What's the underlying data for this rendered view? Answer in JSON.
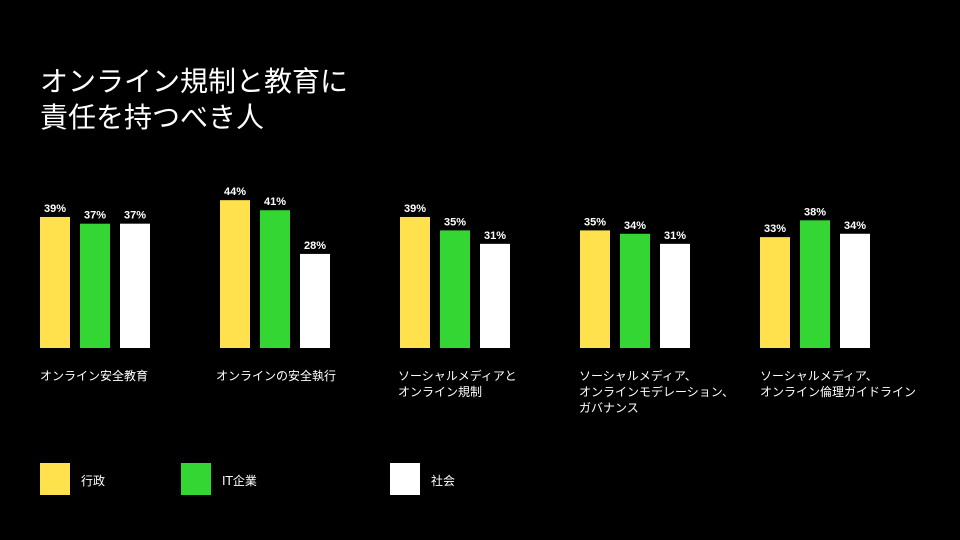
{
  "title": "オンライン規制と教育に\n責任を持つべき人",
  "colors": {
    "government": "#FFE14D",
    "it_companies": "#33D633",
    "society": "#FFFFFF"
  },
  "chart_data": {
    "type": "bar",
    "categories": [
      "オンライン安全教育",
      "オンラインの安全執行",
      "ソーシャルメディアと\nオンライン規制",
      "ソーシャルメディア、\nオンラインモデレーション、\nガバナンス",
      "ソーシャルメディア、\nオンライン倫理ガイドライン"
    ],
    "series": [
      {
        "name": "行政",
        "values": [
          39,
          44,
          39,
          35,
          33
        ],
        "color": "#FFE14D"
      },
      {
        "name": "IT企業",
        "values": [
          37,
          41,
          35,
          34,
          38
        ],
        "color": "#33D633"
      },
      {
        "name": "社会",
        "values": [
          37,
          28,
          31,
          31,
          34
        ],
        "color": "#FFFFFF"
      }
    ],
    "value_suffix": "%",
    "ylim": [
      0,
      44
    ],
    "legend_position": "bottom-left"
  }
}
